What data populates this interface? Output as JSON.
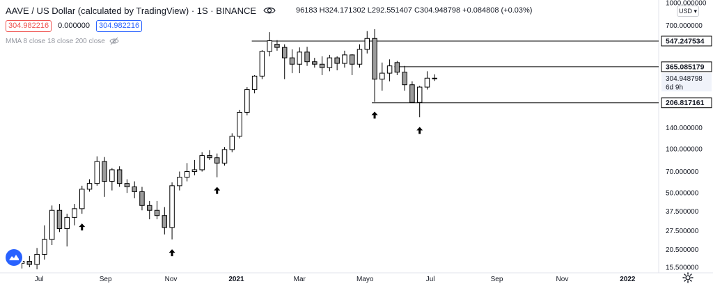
{
  "header": {
    "title": "AAVE / US Dollar (calculated by TradingView) · 1S · BINANCE",
    "ohlc": "96183 H324.171302 L292.551407 C304.948798 +0.084808 (+0.03%)",
    "bid": "304.982216",
    "spread": "0.000000",
    "ask": "304.982216",
    "indicator": "MMA 8 close 18 close 200 close",
    "currency_button": "USD"
  },
  "icons": {
    "visibility": "eye-icon",
    "indicator_hidden": "eye-off-icon",
    "currency_dropdown": "chevron-down-icon",
    "settings": "gear-icon",
    "logo": "tradingview-logo-icon"
  },
  "colors": {
    "candle_up": "#ffffff",
    "candle_down": "#9b9b9b",
    "candle_border": "#000000",
    "level_line": "#000000",
    "bid_border": "#ef5350",
    "ask_border": "#2962ff",
    "logo": "#2962ff"
  },
  "chart_data": {
    "type": "candlestick",
    "scale": "log",
    "ylim": [
      15,
      1000
    ],
    "y_ticks": [
      "1000.000000",
      "700.000000",
      "547.247534",
      "365.085179",
      "304.948798",
      "206.817161",
      "140.000000",
      "100.000000",
      "70.000000",
      "50.000000",
      "37.500000",
      "27.500000",
      "20.500000",
      "15.500000"
    ],
    "y_tick_values": [
      1000,
      700,
      547.247534,
      365.085179,
      304.948798,
      206.817161,
      140,
      100,
      70,
      50,
      37.5,
      27.5,
      20.5,
      15.5
    ],
    "x_ticks": [
      "Jul",
      "Sep",
      "Nov",
      "2021",
      "Mar",
      "Mayo",
      "Jul",
      "Sep",
      "Nov",
      "2022"
    ],
    "x_tick_dates": [
      "2020-07-01",
      "2020-09-01",
      "2020-11-01",
      "2021-01-01",
      "2021-03-01",
      "2021-05-01",
      "2021-07-01",
      "2021-09-01",
      "2021-11-01",
      "2022-01-01"
    ],
    "x_range": [
      "2020-06-01",
      "2022-01-30"
    ],
    "current_price_label": "304.948798",
    "countdown_label": "6d 9h",
    "levels": [
      {
        "value": 547.247534,
        "label": "547.247534",
        "from": "2021-01-18"
      },
      {
        "value": 365.085179,
        "label": "365.085179",
        "from": "2021-05-31"
      },
      {
        "value": 206.817161,
        "label": "206.817161",
        "from": "2021-05-10"
      }
    ],
    "arrows": [
      "2020-08-10",
      "2020-11-02",
      "2020-12-14",
      "2021-05-10",
      "2021-06-21"
    ],
    "candles": [
      {
        "t": "2020-06-15",
        "o": 16.5,
        "h": 18.5,
        "l": 15.2,
        "c": 17.0
      },
      {
        "t": "2020-06-22",
        "o": 17.0,
        "h": 18.5,
        "l": 15.5,
        "c": 16.2
      },
      {
        "t": "2020-06-29",
        "o": 16.2,
        "h": 21,
        "l": 15,
        "c": 19
      },
      {
        "t": "2020-07-06",
        "o": 19,
        "h": 30,
        "l": 17.5,
        "c": 24
      },
      {
        "t": "2020-07-13",
        "o": 24,
        "h": 41,
        "l": 22,
        "c": 38
      },
      {
        "t": "2020-07-20",
        "o": 38,
        "h": 42,
        "l": 27,
        "c": 28.5
      },
      {
        "t": "2020-07-27",
        "o": 28.5,
        "h": 36,
        "l": 21.5,
        "c": 34
      },
      {
        "t": "2020-08-03",
        "o": 34,
        "h": 42,
        "l": 30,
        "c": 39
      },
      {
        "t": "2020-08-10",
        "o": 39,
        "h": 56,
        "l": 36,
        "c": 53
      },
      {
        "t": "2020-08-17",
        "o": 53,
        "h": 62,
        "l": 51,
        "c": 58
      },
      {
        "t": "2020-08-24",
        "o": 58,
        "h": 89,
        "l": 56,
        "c": 82
      },
      {
        "t": "2020-08-31",
        "o": 82,
        "h": 88,
        "l": 47,
        "c": 60
      },
      {
        "t": "2020-09-07",
        "o": 60,
        "h": 74,
        "l": 52,
        "c": 72
      },
      {
        "t": "2020-09-14",
        "o": 72,
        "h": 76,
        "l": 55,
        "c": 58
      },
      {
        "t": "2020-09-21",
        "o": 58,
        "h": 62,
        "l": 50,
        "c": 55
      },
      {
        "t": "2020-09-28",
        "o": 55,
        "h": 60,
        "l": 46,
        "c": 51
      },
      {
        "t": "2020-10-05",
        "o": 51,
        "h": 55,
        "l": 38,
        "c": 41
      },
      {
        "t": "2020-10-12",
        "o": 41,
        "h": 44,
        "l": 33,
        "c": 38
      },
      {
        "t": "2020-10-19",
        "o": 38,
        "h": 44,
        "l": 33,
        "c": 35
      },
      {
        "t": "2020-10-26",
        "o": 35,
        "h": 40,
        "l": 26,
        "c": 29
      },
      {
        "t": "2020-11-02",
        "o": 29,
        "h": 59,
        "l": 24,
        "c": 56
      },
      {
        "t": "2020-11-09",
        "o": 56,
        "h": 70,
        "l": 52,
        "c": 64
      },
      {
        "t": "2020-11-16",
        "o": 64,
        "h": 80,
        "l": 60,
        "c": 70
      },
      {
        "t": "2020-11-23",
        "o": 70,
        "h": 84,
        "l": 66,
        "c": 72
      },
      {
        "t": "2020-11-30",
        "o": 72,
        "h": 95,
        "l": 70,
        "c": 90
      },
      {
        "t": "2020-12-07",
        "o": 90,
        "h": 98,
        "l": 84,
        "c": 87
      },
      {
        "t": "2020-12-14",
        "o": 87,
        "h": 93,
        "l": 64,
        "c": 80
      },
      {
        "t": "2020-12-21",
        "o": 80,
        "h": 103,
        "l": 77,
        "c": 99
      },
      {
        "t": "2020-12-28",
        "o": 99,
        "h": 128,
        "l": 95,
        "c": 122
      },
      {
        "t": "2021-01-04",
        "o": 122,
        "h": 185,
        "l": 118,
        "c": 178
      },
      {
        "t": "2021-01-11",
        "o": 178,
        "h": 265,
        "l": 170,
        "c": 255
      },
      {
        "t": "2021-01-18",
        "o": 255,
        "h": 320,
        "l": 240,
        "c": 315
      },
      {
        "t": "2021-01-25",
        "o": 315,
        "h": 475,
        "l": 300,
        "c": 465
      },
      {
        "t": "2021-02-01",
        "o": 465,
        "h": 630,
        "l": 430,
        "c": 550
      },
      {
        "t": "2021-02-08",
        "o": 520,
        "h": 555,
        "l": 470,
        "c": 495
      },
      {
        "t": "2021-02-15",
        "o": 495,
        "h": 520,
        "l": 300,
        "c": 420
      },
      {
        "t": "2021-02-22",
        "o": 420,
        "h": 480,
        "l": 330,
        "c": 380
      },
      {
        "t": "2021-03-01",
        "o": 380,
        "h": 495,
        "l": 330,
        "c": 460
      },
      {
        "t": "2021-03-08",
        "o": 460,
        "h": 500,
        "l": 370,
        "c": 395
      },
      {
        "t": "2021-03-15",
        "o": 395,
        "h": 420,
        "l": 360,
        "c": 380
      },
      {
        "t": "2021-03-22",
        "o": 380,
        "h": 430,
        "l": 320,
        "c": 360
      },
      {
        "t": "2021-03-29",
        "o": 360,
        "h": 440,
        "l": 340,
        "c": 420
      },
      {
        "t": "2021-04-05",
        "o": 420,
        "h": 430,
        "l": 345,
        "c": 385
      },
      {
        "t": "2021-04-12",
        "o": 385,
        "h": 470,
        "l": 360,
        "c": 440
      },
      {
        "t": "2021-04-19",
        "o": 440,
        "h": 445,
        "l": 320,
        "c": 380
      },
      {
        "t": "2021-04-26",
        "o": 380,
        "h": 520,
        "l": 360,
        "c": 480
      },
      {
        "t": "2021-05-03",
        "o": 480,
        "h": 640,
        "l": 450,
        "c": 570
      },
      {
        "t": "2021-05-10",
        "o": 570,
        "h": 660,
        "l": 210,
        "c": 300
      },
      {
        "t": "2021-05-17",
        "o": 300,
        "h": 390,
        "l": 250,
        "c": 330
      },
      {
        "t": "2021-05-24",
        "o": 330,
        "h": 410,
        "l": 290,
        "c": 370
      },
      {
        "t": "2021-05-31",
        "o": 390,
        "h": 400,
        "l": 320,
        "c": 335
      },
      {
        "t": "2021-06-07",
        "o": 335,
        "h": 370,
        "l": 250,
        "c": 275
      },
      {
        "t": "2021-06-14",
        "o": 275,
        "h": 290,
        "l": 210,
        "c": 208
      },
      {
        "t": "2021-06-21",
        "o": 208,
        "h": 270,
        "l": 165,
        "c": 265
      },
      {
        "t": "2021-06-28",
        "o": 265,
        "h": 340,
        "l": 255,
        "c": 305
      },
      {
        "t": "2021-07-05",
        "o": 305,
        "h": 324,
        "l": 292,
        "c": 304.9
      }
    ]
  }
}
